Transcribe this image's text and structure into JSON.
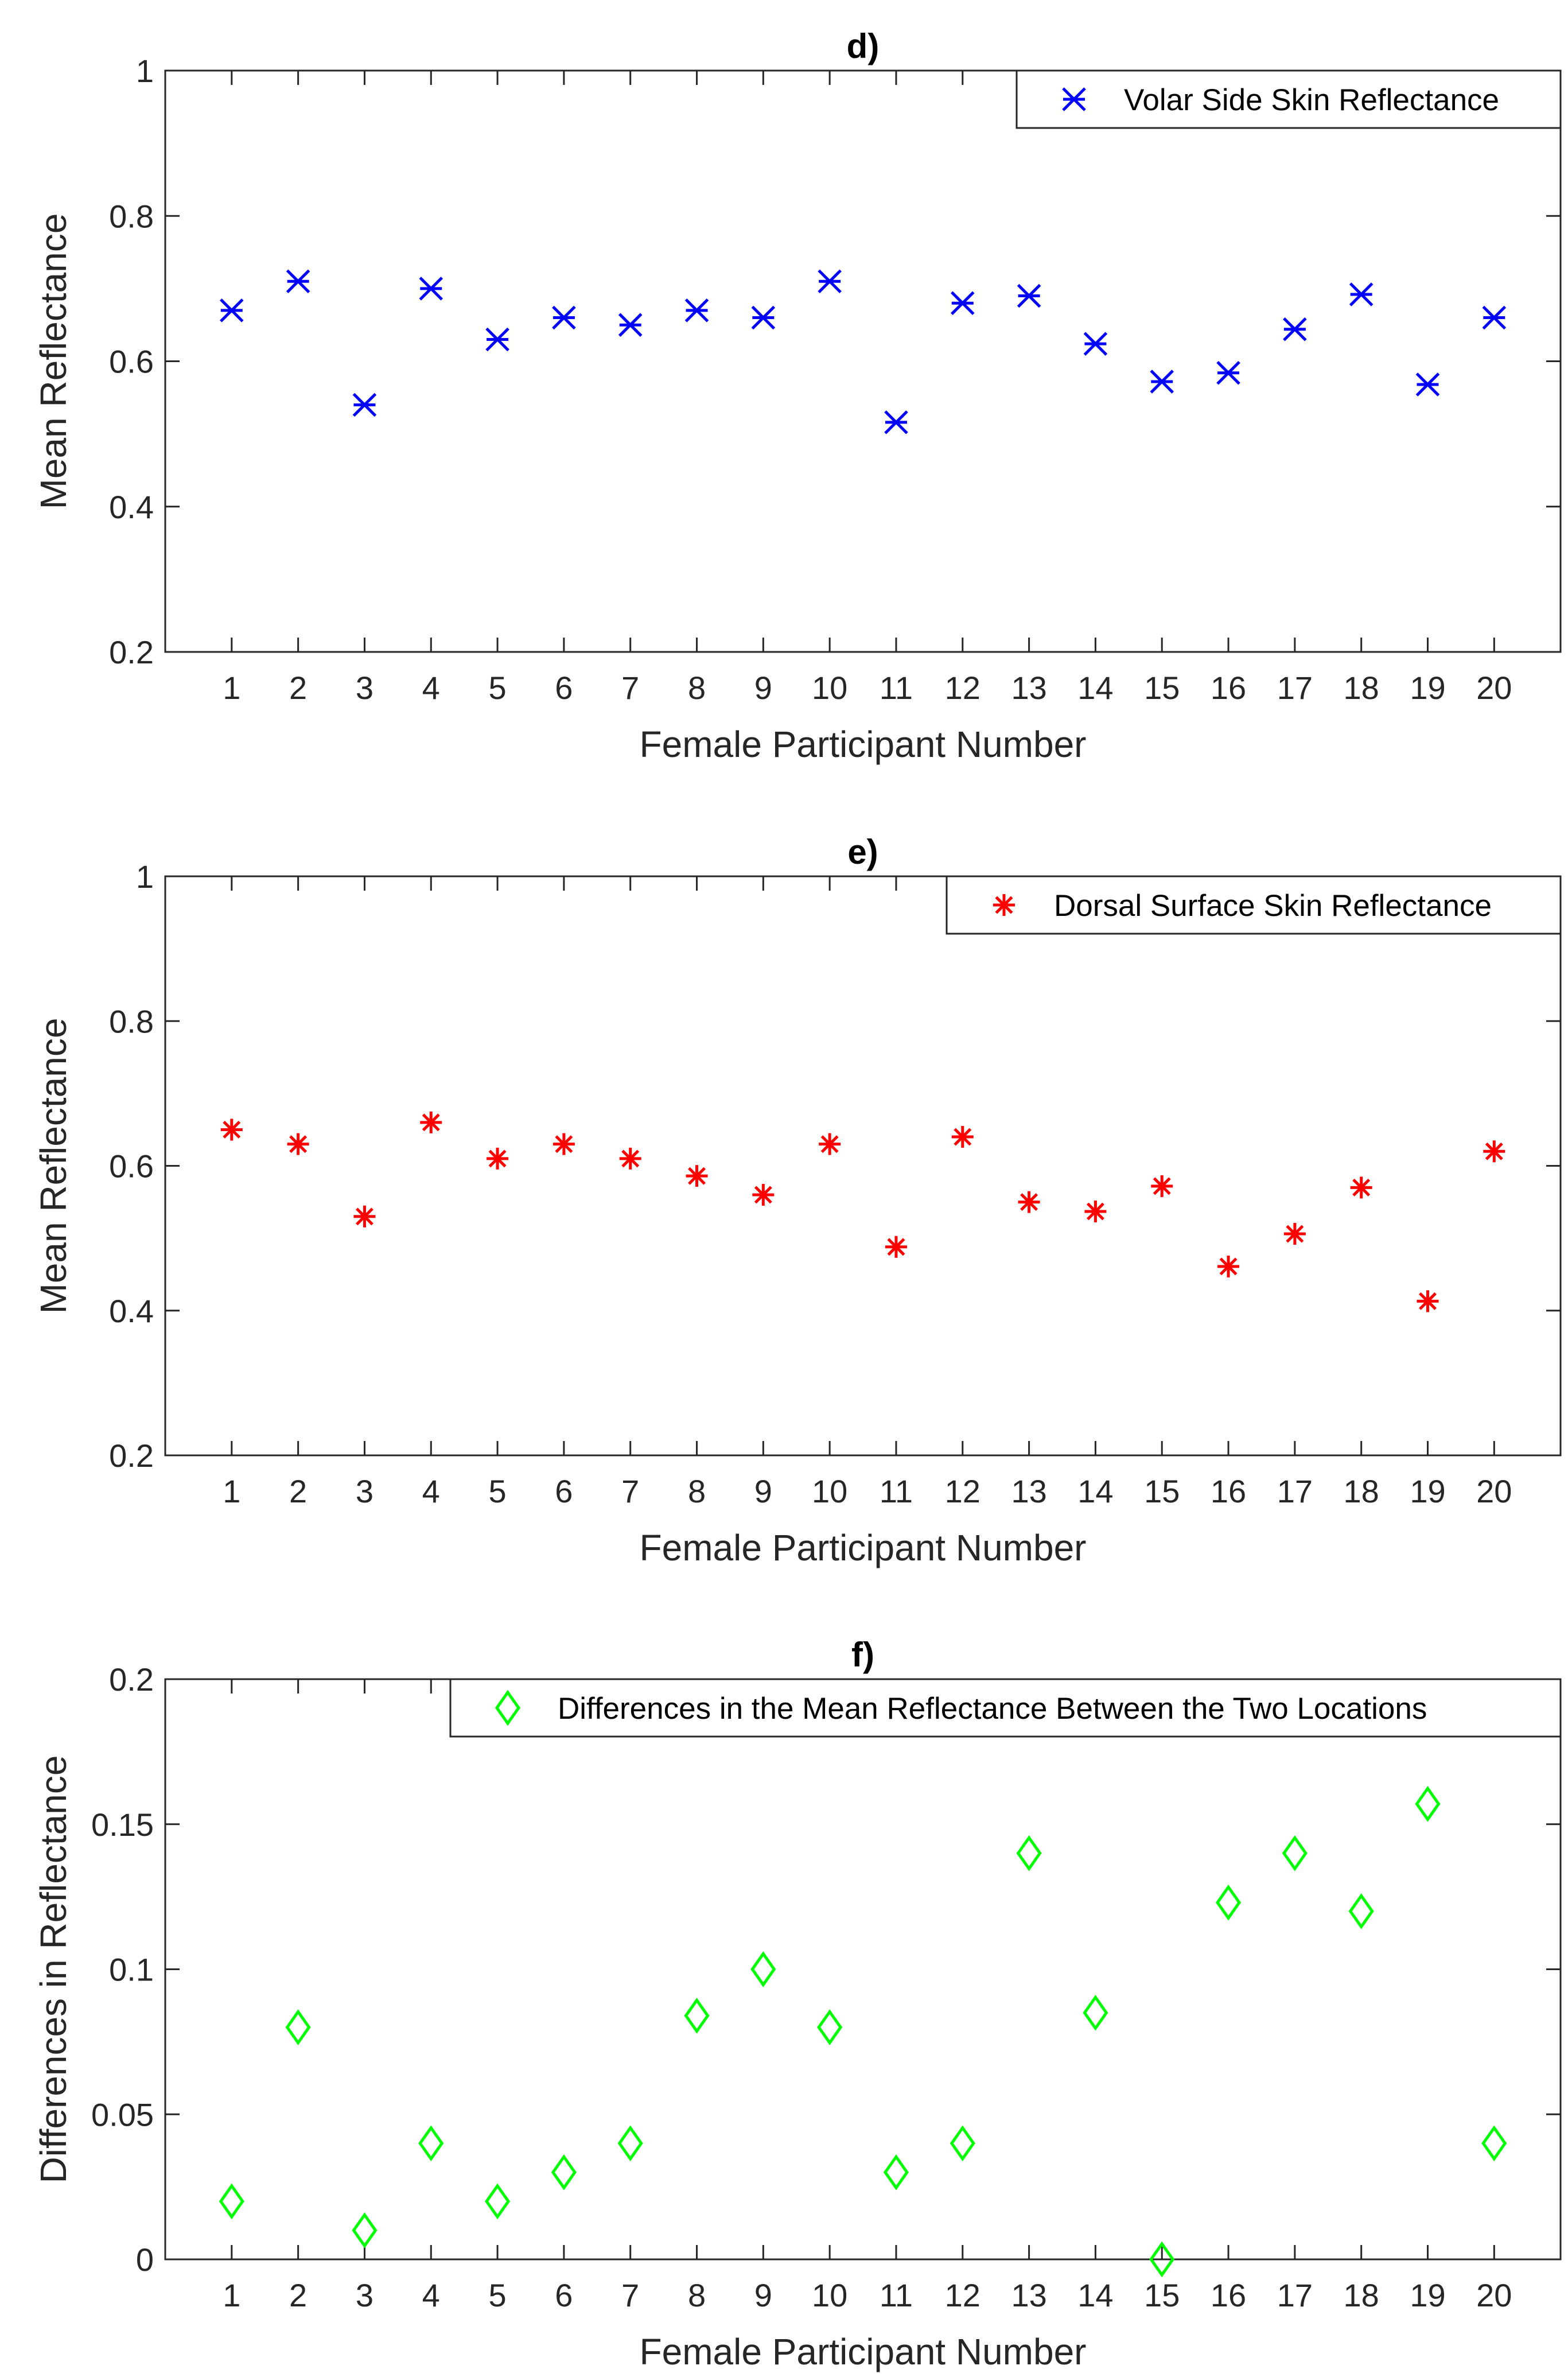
{
  "chart_data": [
    {
      "type": "scatter",
      "title": "d)",
      "xlabel": "Female Participant Number",
      "ylabel": "Mean Reflectance",
      "xlim": [
        0,
        20.999
      ],
      "ylim": [
        0.2,
        1
      ],
      "xticks": [
        1,
        2,
        3,
        4,
        5,
        6,
        7,
        8,
        9,
        10,
        11,
        12,
        13,
        14,
        15,
        16,
        17,
        18,
        19,
        20
      ],
      "yticks": [
        0.2,
        0.4,
        0.6,
        0.8,
        1
      ],
      "ytick_labels": [
        "0.2",
        "0.4",
        "0.6",
        "0.8",
        "1"
      ],
      "legend_position": "top-right",
      "series": [
        {
          "name": "Volar Side Skin Reflectance",
          "marker": "x",
          "color": "#0000ff",
          "x": [
            1,
            2,
            3,
            4,
            5,
            6,
            7,
            8,
            9,
            10,
            11,
            12,
            13,
            14,
            15,
            16,
            17,
            18,
            19,
            20
          ],
          "y": [
            0.67,
            0.71,
            0.54,
            0.7,
            0.63,
            0.66,
            0.65,
            0.67,
            0.66,
            0.71,
            0.516,
            0.68,
            0.69,
            0.624,
            0.572,
            0.584,
            0.644,
            0.692,
            0.568,
            0.66
          ]
        }
      ]
    },
    {
      "type": "scatter",
      "title": "e)",
      "xlabel": "Female Participant Number",
      "ylabel": "Mean Reflectance",
      "xlim": [
        0,
        20.999
      ],
      "ylim": [
        0.2,
        1
      ],
      "xticks": [
        1,
        2,
        3,
        4,
        5,
        6,
        7,
        8,
        9,
        10,
        11,
        12,
        13,
        14,
        15,
        16,
        17,
        18,
        19,
        20
      ],
      "yticks": [
        0.2,
        0.4,
        0.6,
        0.8,
        1
      ],
      "ytick_labels": [
        "0.2",
        "0.4",
        "0.6",
        "0.8",
        "1"
      ],
      "legend_position": "top-right",
      "series": [
        {
          "name": "Dorsal Surface Skin Reflectance",
          "marker": "*",
          "color": "#ff0000",
          "x": [
            1,
            2,
            3,
            4,
            5,
            6,
            7,
            8,
            9,
            10,
            11,
            12,
            13,
            14,
            15,
            16,
            17,
            18,
            19,
            20
          ],
          "y": [
            0.65,
            0.63,
            0.53,
            0.66,
            0.61,
            0.63,
            0.61,
            0.586,
            0.56,
            0.63,
            0.488,
            0.64,
            0.55,
            0.537,
            0.572,
            0.461,
            0.506,
            0.57,
            0.413,
            0.62
          ]
        }
      ]
    },
    {
      "type": "scatter",
      "title": "f)",
      "xlabel": "Female Participant Number",
      "ylabel": "Differences in Reflectance",
      "xlim": [
        0,
        20.999
      ],
      "ylim": [
        0,
        0.2
      ],
      "xticks": [
        1,
        2,
        3,
        4,
        5,
        6,
        7,
        8,
        9,
        10,
        11,
        12,
        13,
        14,
        15,
        16,
        17,
        18,
        19,
        20
      ],
      "yticks": [
        0,
        0.05,
        0.1,
        0.15,
        0.2
      ],
      "ytick_labels": [
        "0",
        "0.05",
        "0.1",
        "0.15",
        "0.2"
      ],
      "legend_position": "top-right",
      "series": [
        {
          "name": "Differences in the Mean Reflectance Between the Two Locations",
          "marker": "diamond",
          "color": "#00ff00",
          "x": [
            1,
            2,
            3,
            4,
            5,
            6,
            7,
            8,
            9,
            10,
            11,
            12,
            13,
            14,
            15,
            16,
            17,
            18,
            19,
            20
          ],
          "y": [
            0.02,
            0.08,
            0.01,
            0.04,
            0.02,
            0.03,
            0.04,
            0.084,
            0.1,
            0.08,
            0.03,
            0.04,
            0.14,
            0.085,
            0.0,
            0.123,
            0.14,
            0.12,
            0.157,
            0.04
          ]
        }
      ]
    }
  ]
}
